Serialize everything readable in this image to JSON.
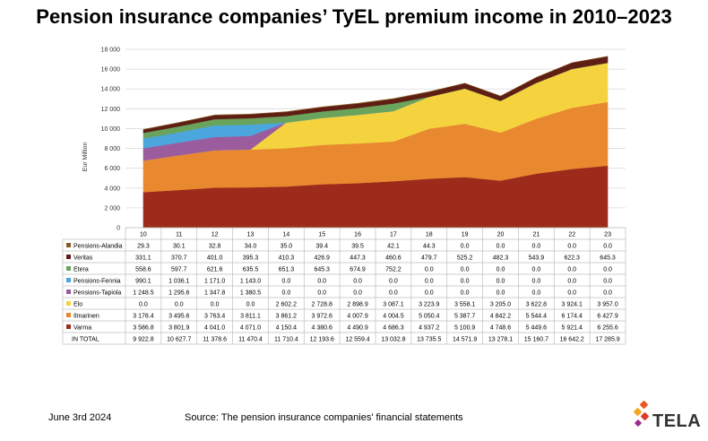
{
  "title": "Pension insurance companies’ TyEL premium income in 2010–2023",
  "footer": {
    "date": "June 3rd 2024",
    "source": "Source: The pension insurance companies' financial statements"
  },
  "logo": {
    "text": "TELA",
    "dot_colors": [
      "#e85a1f",
      "#f2a81d",
      "#e03a2e",
      "#9b2b8f"
    ]
  },
  "chart_data": {
    "type": "area",
    "stacked": true,
    "ylabel": "Eur Million",
    "ylim": [
      0,
      18000
    ],
    "ytick_step": 2000,
    "yticks": [
      "0",
      "2 000",
      "4 000",
      "6 000",
      "8 000",
      "10 000",
      "12 000",
      "14 000",
      "16 000",
      "18 000"
    ],
    "grid": "horizontal",
    "legend": "table-below",
    "categories": [
      "10",
      "11",
      "12",
      "13",
      "14",
      "15",
      "16",
      "17",
      "18",
      "19",
      "20",
      "21",
      "22",
      "23"
    ],
    "series_bottom_up": [
      {
        "name": "Varma",
        "color": "#9c2b1b",
        "values": [
          3586.8,
          3801.9,
          4041.0,
          4071.0,
          4150.4,
          4380.6,
          4490.9,
          4686.3,
          4937.2,
          5100.9,
          4748.6,
          5449.6,
          5921.4,
          6255.6
        ],
        "labels": [
          "3 586.8",
          "3 801.9",
          "4 041.0",
          "4 071.0",
          "4 150.4",
          "4 380.6",
          "4 490.9",
          "4 686.3",
          "4 937.2",
          "5 100.9",
          "4 748.6",
          "5 449.6",
          "5 921.4",
          "6 255.6"
        ]
      },
      {
        "name": "Ilmarinen",
        "color": "#e8892f",
        "values": [
          3178.4,
          3495.6,
          3763.4,
          3811.1,
          3861.2,
          3972.6,
          4007.9,
          4004.5,
          5050.4,
          5387.7,
          4842.2,
          5544.4,
          6174.4,
          6427.9
        ],
        "labels": [
          "3 178.4",
          "3 495.6",
          "3 763.4",
          "3 811.1",
          "3 861.2",
          "3 972.6",
          "4 007.9",
          "4 004.5",
          "5 050.4",
          "5 387.7",
          "4 842.2",
          "5 544.4",
          "6 174.4",
          "6 427.9"
        ]
      },
      {
        "name": "Elo",
        "color": "#f4d33e",
        "values": [
          0,
          0,
          0,
          0,
          2602.2,
          2728.8,
          2898.9,
          3087.1,
          3223.9,
          3558.1,
          3205.0,
          3622.8,
          3924.1,
          3957.0
        ],
        "labels": [
          "0.0",
          "0.0",
          "0.0",
          "0.0",
          "2 602.2",
          "2 728.8",
          "2 898.9",
          "3 087.1",
          "3 223.9",
          "3 558.1",
          "3 205.0",
          "3 622.8",
          "3 924.1",
          "3 957.0"
        ]
      },
      {
        "name": "Pensions-Tapiola",
        "color": "#9b5c9e",
        "values": [
          1248.5,
          1295.6,
          1347.8,
          1380.5,
          0,
          0,
          0,
          0,
          0,
          0,
          0,
          0,
          0,
          0
        ],
        "labels": [
          "1 248.5",
          "1 295.6",
          "1 347.8",
          "1 380.5",
          "0.0",
          "0.0",
          "0.0",
          "0.0",
          "0.0",
          "0.0",
          "0.0",
          "0.0",
          "0.0",
          "0.0"
        ]
      },
      {
        "name": "Pensions-Fennia",
        "color": "#4aa6dc",
        "values": [
          990.1,
          1036.1,
          1171.0,
          1143.0,
          0,
          0,
          0,
          0,
          0,
          0,
          0,
          0,
          0,
          0
        ],
        "labels": [
          "990.1",
          "1 036.1",
          "1 171.0",
          "1 143.0",
          "0.0",
          "0.0",
          "0.0",
          "0.0",
          "0.0",
          "0.0",
          "0.0",
          "0.0",
          "0.0",
          "0.0"
        ]
      },
      {
        "name": "Etera",
        "color": "#6aa35c",
        "values": [
          558.6,
          597.7,
          621.6,
          635.5,
          651.3,
          645.3,
          674.9,
          752.2,
          0,
          0,
          0,
          0,
          0,
          0
        ],
        "labels": [
          "558.6",
          "597.7",
          "621.6",
          "635.5",
          "651.3",
          "645.3",
          "674.9",
          "752.2",
          "0.0",
          "0.0",
          "0.0",
          "0.0",
          "0.0",
          "0.0"
        ]
      },
      {
        "name": "Veritas",
        "color": "#5e1e14",
        "values": [
          331.1,
          370.7,
          401.0,
          395.3,
          410.3,
          426.9,
          447.3,
          460.6,
          479.7,
          525.2,
          482.3,
          543.9,
          622.3,
          645.3
        ],
        "labels": [
          "331.1",
          "370.7",
          "401.0",
          "395.3",
          "410.3",
          "426.9",
          "447.3",
          "460.6",
          "479.7",
          "525.2",
          "482.3",
          "543.9",
          "622.3",
          "645.3"
        ]
      },
      {
        "name": "Pensions-Alandia",
        "color": "#8a5a24",
        "values": [
          29.3,
          30.1,
          32.8,
          34.0,
          35.0,
          39.4,
          39.5,
          42.1,
          44.3,
          0,
          0,
          0,
          0,
          0
        ],
        "labels": [
          "29.3",
          "30.1",
          "32.8",
          "34.0",
          "35.0",
          "39.4",
          "39.5",
          "42.1",
          "44.3",
          "0.0",
          "0.0",
          "0.0",
          "0.0",
          "0.0"
        ]
      }
    ],
    "table_row_order": [
      "Pensions-Alandia",
      "Veritas",
      "Etera",
      "Pensions-Fennia",
      "Pensions-Tapiola",
      "Elo",
      "Ilmarinen",
      "Varma"
    ],
    "total": {
      "name": "IN TOTAL",
      "values": [
        9922.8,
        10627.7,
        11378.6,
        11470.4,
        11710.4,
        12193.6,
        12559.4,
        13032.8,
        13735.5,
        14571.9,
        13278.1,
        15160.7,
        16642.2,
        17285.9
      ],
      "labels": [
        "9 922.8",
        "10 627.7",
        "11 378.6",
        "11 470.4",
        "11 710.4",
        "12 193.6",
        "12 559.4",
        "13 032.8",
        "13 735.5",
        "14 571.9",
        "13 278.1",
        "15 160.7",
        "16 642.2",
        "17 285.9"
      ]
    }
  }
}
